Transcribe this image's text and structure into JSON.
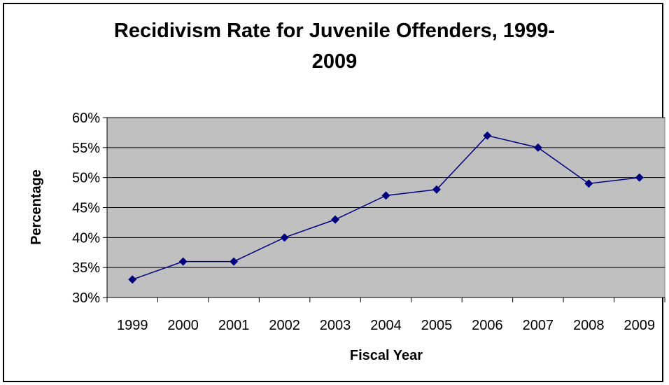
{
  "chart_data": {
    "type": "line",
    "title_lines": [
      "Recidivism Rate for Juvenile Offenders, 1999-",
      "2009"
    ],
    "xlabel": "Fiscal Year",
    "ylabel": "Percentage",
    "categories": [
      "1999",
      "2000",
      "2001",
      "2002",
      "2003",
      "2004",
      "2005",
      "2006",
      "2007",
      "2008",
      "2009"
    ],
    "series": [
      {
        "values": [
          33,
          36,
          36,
          40,
          43,
          47,
          48,
          57,
          55,
          49,
          50
        ]
      }
    ],
    "ylim": [
      30,
      60
    ],
    "y_ticks": [
      "30%",
      "35%",
      "40%",
      "45%",
      "50%",
      "55%",
      "60%"
    ],
    "y_tick_values": [
      30,
      35,
      40,
      45,
      50,
      55,
      60
    ],
    "grid": "horizontal",
    "legend": "none",
    "colors": {
      "line": "#000080",
      "marker": "#000080",
      "plot_background": "#c0c0c0",
      "gridline": "#000000"
    }
  }
}
